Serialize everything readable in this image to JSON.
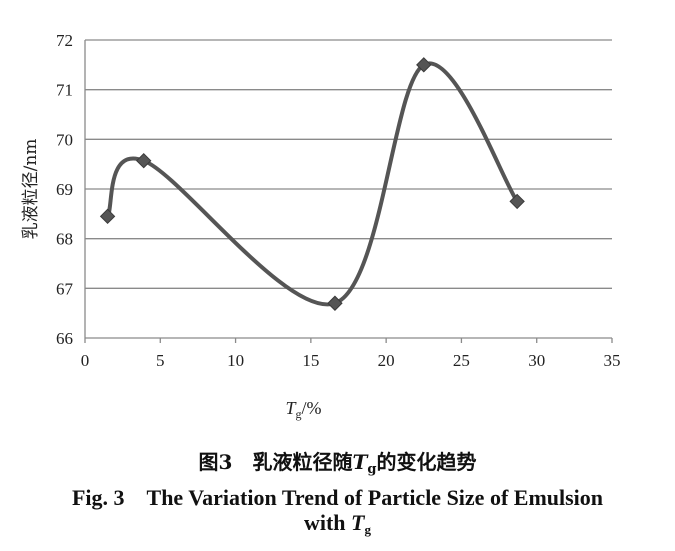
{
  "chart_data": {
    "type": "line",
    "smooth": true,
    "markers": "diamond",
    "x": [
      1.5,
      3.9,
      16.6,
      22.5,
      28.7
    ],
    "y": [
      68.45,
      69.57,
      66.7,
      71.5,
      68.75
    ],
    "xlim": [
      0,
      35
    ],
    "ylim": [
      66,
      72
    ],
    "xticks": [
      0,
      5,
      10,
      15,
      20,
      25,
      30,
      35
    ],
    "yticks": [
      66,
      67,
      68,
      69,
      70,
      71,
      72
    ],
    "grid": "horizontal",
    "ylabel": "乳液粒径/nm",
    "xlabel": {
      "var": "T",
      "sub": "g",
      "unit": "/%"
    },
    "line_color": "#555555"
  },
  "caption": {
    "zh_prefix": "图3　乳液粒径随",
    "zh_var": "T",
    "zh_sub": "g",
    "zh_suffix": "的变化趋势",
    "en_line1": "Fig. 3　The Variation Trend of Particle Size of Emulsion",
    "en_line2_prefix": "with ",
    "en_var": "T",
    "en_sub": "g"
  }
}
